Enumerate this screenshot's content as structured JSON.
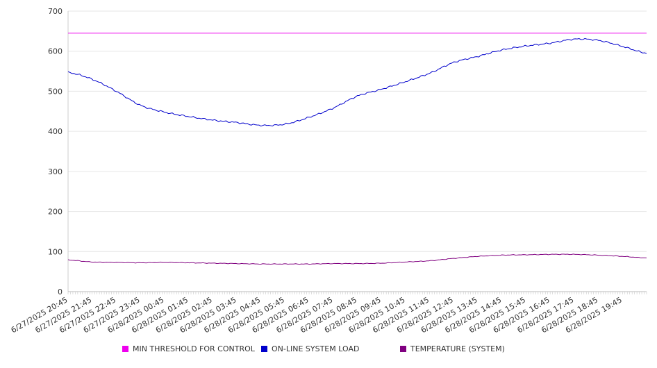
{
  "chart_data": {
    "type": "line",
    "title": "",
    "xlabel": "",
    "ylabel": "",
    "ylim": [
      0,
      700
    ],
    "y_ticks": [
      "0",
      "100",
      "200",
      "300",
      "400",
      "500",
      "600",
      "700"
    ],
    "grid": "horizontal",
    "legend_position": "bottom",
    "x_tick_labels": [
      "6/27/2025 20:45",
      "6/27/2025 21:45",
      "6/27/2025 22:45",
      "6/27/2025 23:45",
      "6/28/2025 00:45",
      "6/28/2025 01:45",
      "6/28/2025 02:45",
      "6/28/2025 03:45",
      "6/28/2025 04:45",
      "6/28/2025 05:45",
      "6/28/2025 06:45",
      "6/28/2025 07:45",
      "6/28/2025 08:45",
      "6/28/2025 09:45",
      "6/28/2025 10:45",
      "6/28/2025 11:45",
      "6/28/2025 12:45",
      "6/28/2025 13:45",
      "6/28/2025 14:45",
      "6/28/2025 15:45",
      "6/28/2025 16:45",
      "6/28/2025 17:45",
      "6/28/2025 18:45",
      "6/28/2025 19:45"
    ],
    "x": [
      "6/27/2025 20:45",
      "6/27/2025 21:45",
      "6/27/2025 22:45",
      "6/27/2025 23:45",
      "6/28/2025 00:45",
      "6/28/2025 01:45",
      "6/28/2025 02:45",
      "6/28/2025 03:45",
      "6/28/2025 04:45",
      "6/28/2025 05:45",
      "6/28/2025 06:45",
      "6/28/2025 07:45",
      "6/28/2025 08:45",
      "6/28/2025 09:45",
      "6/28/2025 10:45",
      "6/28/2025 11:45",
      "6/28/2025 12:45",
      "6/28/2025 13:45",
      "6/28/2025 14:45",
      "6/28/2025 15:45",
      "6/28/2025 16:45",
      "6/28/2025 17:45",
      "6/28/2025 18:45",
      "6/28/2025 19:45",
      "6/28/2025 20:45"
    ],
    "series": [
      {
        "name": "MIN THRESHOLD FOR CONTROL",
        "color": "#ee00ee",
        "values": [
          645,
          645,
          645,
          645,
          645,
          645,
          645,
          645,
          645,
          645,
          645,
          645,
          645,
          645,
          645,
          645,
          645,
          645,
          645,
          645,
          645,
          645,
          645,
          645,
          645
        ]
      },
      {
        "name": "ON-LINE SYSTEM LOAD",
        "color": "#0000cc",
        "values": [
          547,
          530,
          500,
          465,
          448,
          437,
          428,
          422,
          415,
          418,
          435,
          458,
          488,
          505,
          524,
          545,
          572,
          587,
          603,
          613,
          620,
          630,
          627,
          612,
          595
        ]
      },
      {
        "name": "TEMPERATURE (SYSTEM)",
        "color": "#800080",
        "values": [
          79,
          74,
          73,
          72,
          73,
          72,
          71,
          70,
          69,
          69,
          69,
          70,
          70,
          71,
          74,
          77,
          83,
          88,
          91,
          92,
          93,
          93,
          91,
          88,
          84
        ]
      }
    ]
  }
}
